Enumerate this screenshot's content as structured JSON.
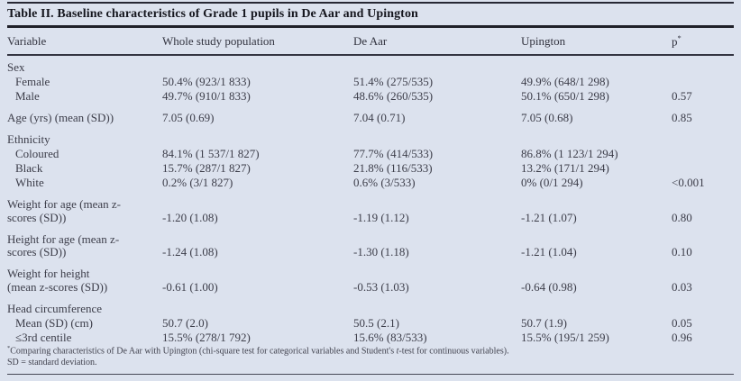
{
  "title": "Table II. Baseline characteristics of Grade 1 pupils in De Aar and Upington",
  "columns": [
    {
      "label": "Variable"
    },
    {
      "label": "Whole study population"
    },
    {
      "label": "De Aar"
    },
    {
      "label": "Upington"
    },
    {
      "label": "p",
      "sup": "*"
    }
  ],
  "table": {
    "rows": [
      {
        "label": "Sex",
        "type": "group"
      },
      {
        "label": "Female",
        "indent": true,
        "cells": [
          "50.4% (923/1 833)",
          "51.4% (275/535)",
          "49.9% (648/1 298)",
          ""
        ]
      },
      {
        "label": "Male",
        "indent": true,
        "cells": [
          "49.7% (910/1 833)",
          "48.6% (260/535)",
          "50.1% (650/1 298)",
          "0.57"
        ]
      },
      {
        "label": "Age (yrs) (mean (SD))",
        "cells": [
          "7.05 (0.69)",
          "7.04 (0.71)",
          "7.05 (0.68)",
          "0.85"
        ]
      },
      {
        "label": "Ethnicity",
        "type": "group"
      },
      {
        "label": "Coloured",
        "indent": true,
        "cells": [
          "84.1% (1 537/1 827)",
          "77.7% (414/533)",
          "86.8% (1 123/1 294)",
          ""
        ]
      },
      {
        "label": "Black",
        "indent": true,
        "cells": [
          "15.7% (287/1 827)",
          "21.8% (116/533)",
          "13.2% (171/1 294)",
          ""
        ]
      },
      {
        "label": "White",
        "indent": true,
        "cells": [
          "0.2% (3/1 827)",
          "0.6% (3/533)",
          "0% (0/1 294)",
          "<0.001"
        ]
      },
      {
        "label_line1": "Weight for age (mean z-",
        "label_line2": "scores (SD))",
        "cells": [
          "-1.20 (1.08)",
          "-1.19 (1.12)",
          "-1.21 (1.07)",
          "0.80"
        ]
      },
      {
        "label_line1": "Height for age (mean z-",
        "label_line2": "scores (SD))",
        "cells": [
          "-1.24 (1.08)",
          "-1.30 (1.18)",
          "-1.21 (1.04)",
          "0.10"
        ]
      },
      {
        "label_line1": "Weight for height",
        "label_line2": "(mean z-scores (SD))",
        "cells": [
          "-0.61 (1.00)",
          "-0.53 (1.03)",
          "-0.64 (0.98)",
          "0.03"
        ]
      },
      {
        "label": "Head circumference",
        "type": "group"
      },
      {
        "label": "Mean (SD) (cm)",
        "indent": true,
        "cells": [
          "50.7 (2.0)",
          "50.5 (2.1)",
          "50.7 (1.9)",
          "0.05"
        ]
      },
      {
        "label": "≤3rd centile",
        "indent": true,
        "cells": [
          "15.5% (278/1 792)",
          "15.6% (83/533)",
          "15.5% (195/1 259)",
          "0.96"
        ]
      }
    ]
  },
  "footnotes": {
    "sup": "*",
    "line1_pre_italic": "Comparing characteristics of De Aar with Upington (chi-square test for categorical variables and Student's ",
    "line1_italic": "t",
    "line1_post_italic": "-test for continuous variables).",
    "line2": "SD =  standard deviation."
  },
  "colors": {
    "background": "#dce2ee",
    "rule": "#1f2029",
    "text": "#3c3d49"
  }
}
